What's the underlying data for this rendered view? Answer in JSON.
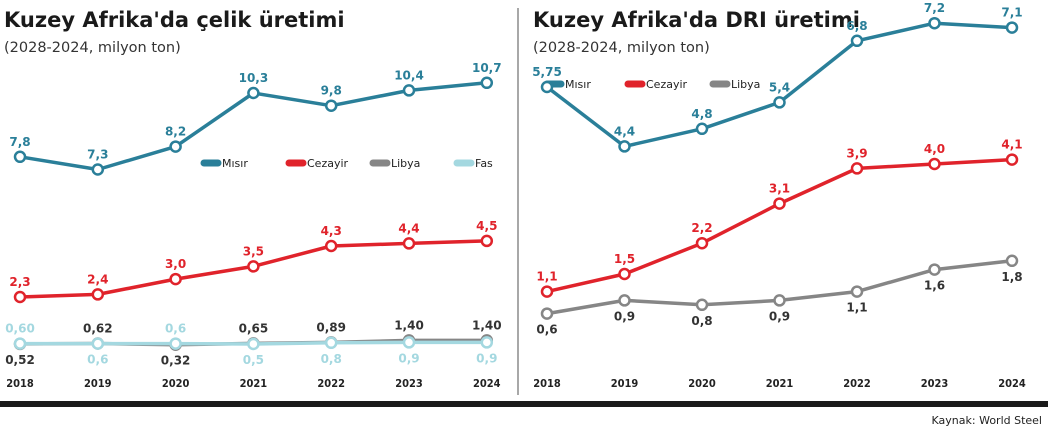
{
  "source": "Kaynak: World Steel",
  "colors": {
    "Mısır": "#2a7f99",
    "Cezayir": "#e0232b",
    "Libya": "#868686",
    "Fas": "#a4d8e0"
  },
  "chart_data": [
    {
      "type": "line",
      "title": "Kuzey Afrika'da çelik üretimi",
      "subtitle": "(2028-2024, milyon ton)",
      "xlabel": "",
      "ylabel": "",
      "categories": [
        "2018",
        "2019",
        "2020",
        "2021",
        "2022",
        "2023",
        "2024"
      ],
      "ylim": [
        0,
        11
      ],
      "grid": false,
      "legend_position": "right-middle",
      "series": [
        {
          "name": "Mısır",
          "values": [
            7.8,
            7.3,
            8.2,
            10.3,
            9.8,
            10.4,
            10.7
          ],
          "labels": [
            "7,8",
            "7,3",
            "8,2",
            "10,3",
            "9,8",
            "10,4",
            "10,7"
          ]
        },
        {
          "name": "Cezayir",
          "values": [
            2.3,
            2.4,
            3.0,
            3.5,
            4.3,
            4.4,
            4.5
          ],
          "labels": [
            "2,3",
            "2,4",
            "3,0",
            "3,5",
            "4,3",
            "4,4",
            "4,5"
          ]
        },
        {
          "name": "Libya",
          "values": [
            0.52,
            0.62,
            0.32,
            0.65,
            0.89,
            1.4,
            1.4
          ],
          "labels": [
            "0,52",
            "0,62",
            "0,32",
            "0,65",
            "0,89",
            "1,40",
            "1,40"
          ]
        },
        {
          "name": "Fas",
          "values": [
            0.6,
            0.6,
            0.6,
            0.5,
            0.8,
            0.9,
            0.9
          ],
          "labels": [
            "0,60",
            "0,6",
            "0,6",
            "0,5",
            "0,8",
            "0,9",
            "0,9"
          ]
        }
      ]
    },
    {
      "type": "line",
      "title": "Kuzey Afrika'da DRI üretimi",
      "subtitle": "(2028-2024, milyon ton)",
      "xlabel": "",
      "ylabel": "",
      "categories": [
        "2018",
        "2019",
        "2020",
        "2021",
        "2022",
        "2023",
        "2024"
      ],
      "ylim": [
        0,
        7.5
      ],
      "grid": false,
      "legend_position": "top-left",
      "series": [
        {
          "name": "Mısır",
          "values": [
            5.75,
            4.4,
            4.8,
            5.4,
            6.8,
            7.2,
            7.1
          ],
          "labels": [
            "5,75",
            "4,4",
            "4,8",
            "5,4",
            "6,8",
            "7,2",
            "7,1"
          ]
        },
        {
          "name": "Cezayir",
          "values": [
            1.1,
            1.5,
            2.2,
            3.1,
            3.9,
            4.0,
            4.1
          ],
          "labels": [
            "1,1",
            "1,5",
            "2,2",
            "3,1",
            "3,9",
            "4,0",
            "4,1"
          ]
        },
        {
          "name": "Libya",
          "values": [
            0.6,
            0.9,
            0.8,
            0.9,
            1.1,
            1.6,
            1.8
          ],
          "labels": [
            "0,6",
            "0,9",
            "0,8",
            "0,9",
            "1,1",
            "1,6",
            "1,8"
          ]
        }
      ]
    }
  ]
}
